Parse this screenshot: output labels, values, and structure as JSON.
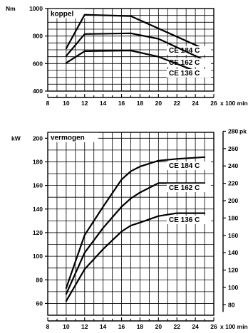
{
  "chart_data": [
    {
      "type": "line",
      "title": "koppel",
      "ylabel": "Nm",
      "xlabel": "x 100 min",
      "xlabel_superscript": "-1",
      "xlim": [
        8,
        26
      ],
      "ylim": [
        400,
        1000
      ],
      "x_ticks": [
        "8",
        "10",
        "12",
        "14",
        "16",
        "18",
        "20",
        "22",
        "24",
        "26"
      ],
      "y_ticks": [
        "400",
        "600",
        "800",
        "1000"
      ],
      "grid": true,
      "series": [
        {
          "name": "CE 184 C",
          "x": [
            10,
            12,
            17,
            25
          ],
          "y": [
            710,
            955,
            945,
            705
          ]
        },
        {
          "name": "CE 162 C",
          "x": [
            10,
            12,
            17,
            20,
            25
          ],
          "y": [
            655,
            815,
            820,
            780,
            625
          ]
        },
        {
          "name": "CE 136 C",
          "x": [
            10,
            12,
            17,
            20,
            25
          ],
          "y": [
            605,
            690,
            695,
            650,
            520
          ]
        }
      ]
    },
    {
      "type": "line",
      "title": "vermogen",
      "ylabel": "kW",
      "y2label": "pk",
      "xlabel": "x 100 min",
      "xlabel_superscript": "-1",
      "xlim": [
        8,
        26
      ],
      "ylim": [
        50,
        205
      ],
      "y2lim": [
        67.98,
        278.73
      ],
      "x_ticks": [
        "8",
        "10",
        "12",
        "14",
        "16",
        "18",
        "20",
        "22",
        "24",
        "26"
      ],
      "y_ticks": [
        "60",
        "80",
        "100",
        "120",
        "140",
        "160",
        "180",
        "200"
      ],
      "y2_ticks": [
        "80",
        "100",
        "120",
        "140",
        "160",
        "180",
        "200",
        "220",
        "240",
        "260",
        "280"
      ],
      "grid": true,
      "series": [
        {
          "name": "CE 184 C",
          "x": [
            10,
            12,
            14,
            16,
            17,
            18,
            20,
            22,
            25
          ],
          "y": [
            73,
            118,
            142,
            165,
            172,
            176,
            181,
            182.5,
            184
          ]
        },
        {
          "name": "CE 162 C",
          "x": [
            10,
            12,
            14,
            16,
            17,
            18,
            20,
            22,
            25
          ],
          "y": [
            68,
            103,
            124,
            142,
            149,
            154,
            162,
            162,
            162
          ]
        },
        {
          "name": "CE 136 C",
          "x": [
            10,
            12,
            14,
            16,
            17,
            18,
            20,
            22,
            25
          ],
          "y": [
            62,
            89,
            106,
            121,
            126,
            128.5,
            134,
            136.5,
            136.5
          ]
        }
      ]
    }
  ]
}
